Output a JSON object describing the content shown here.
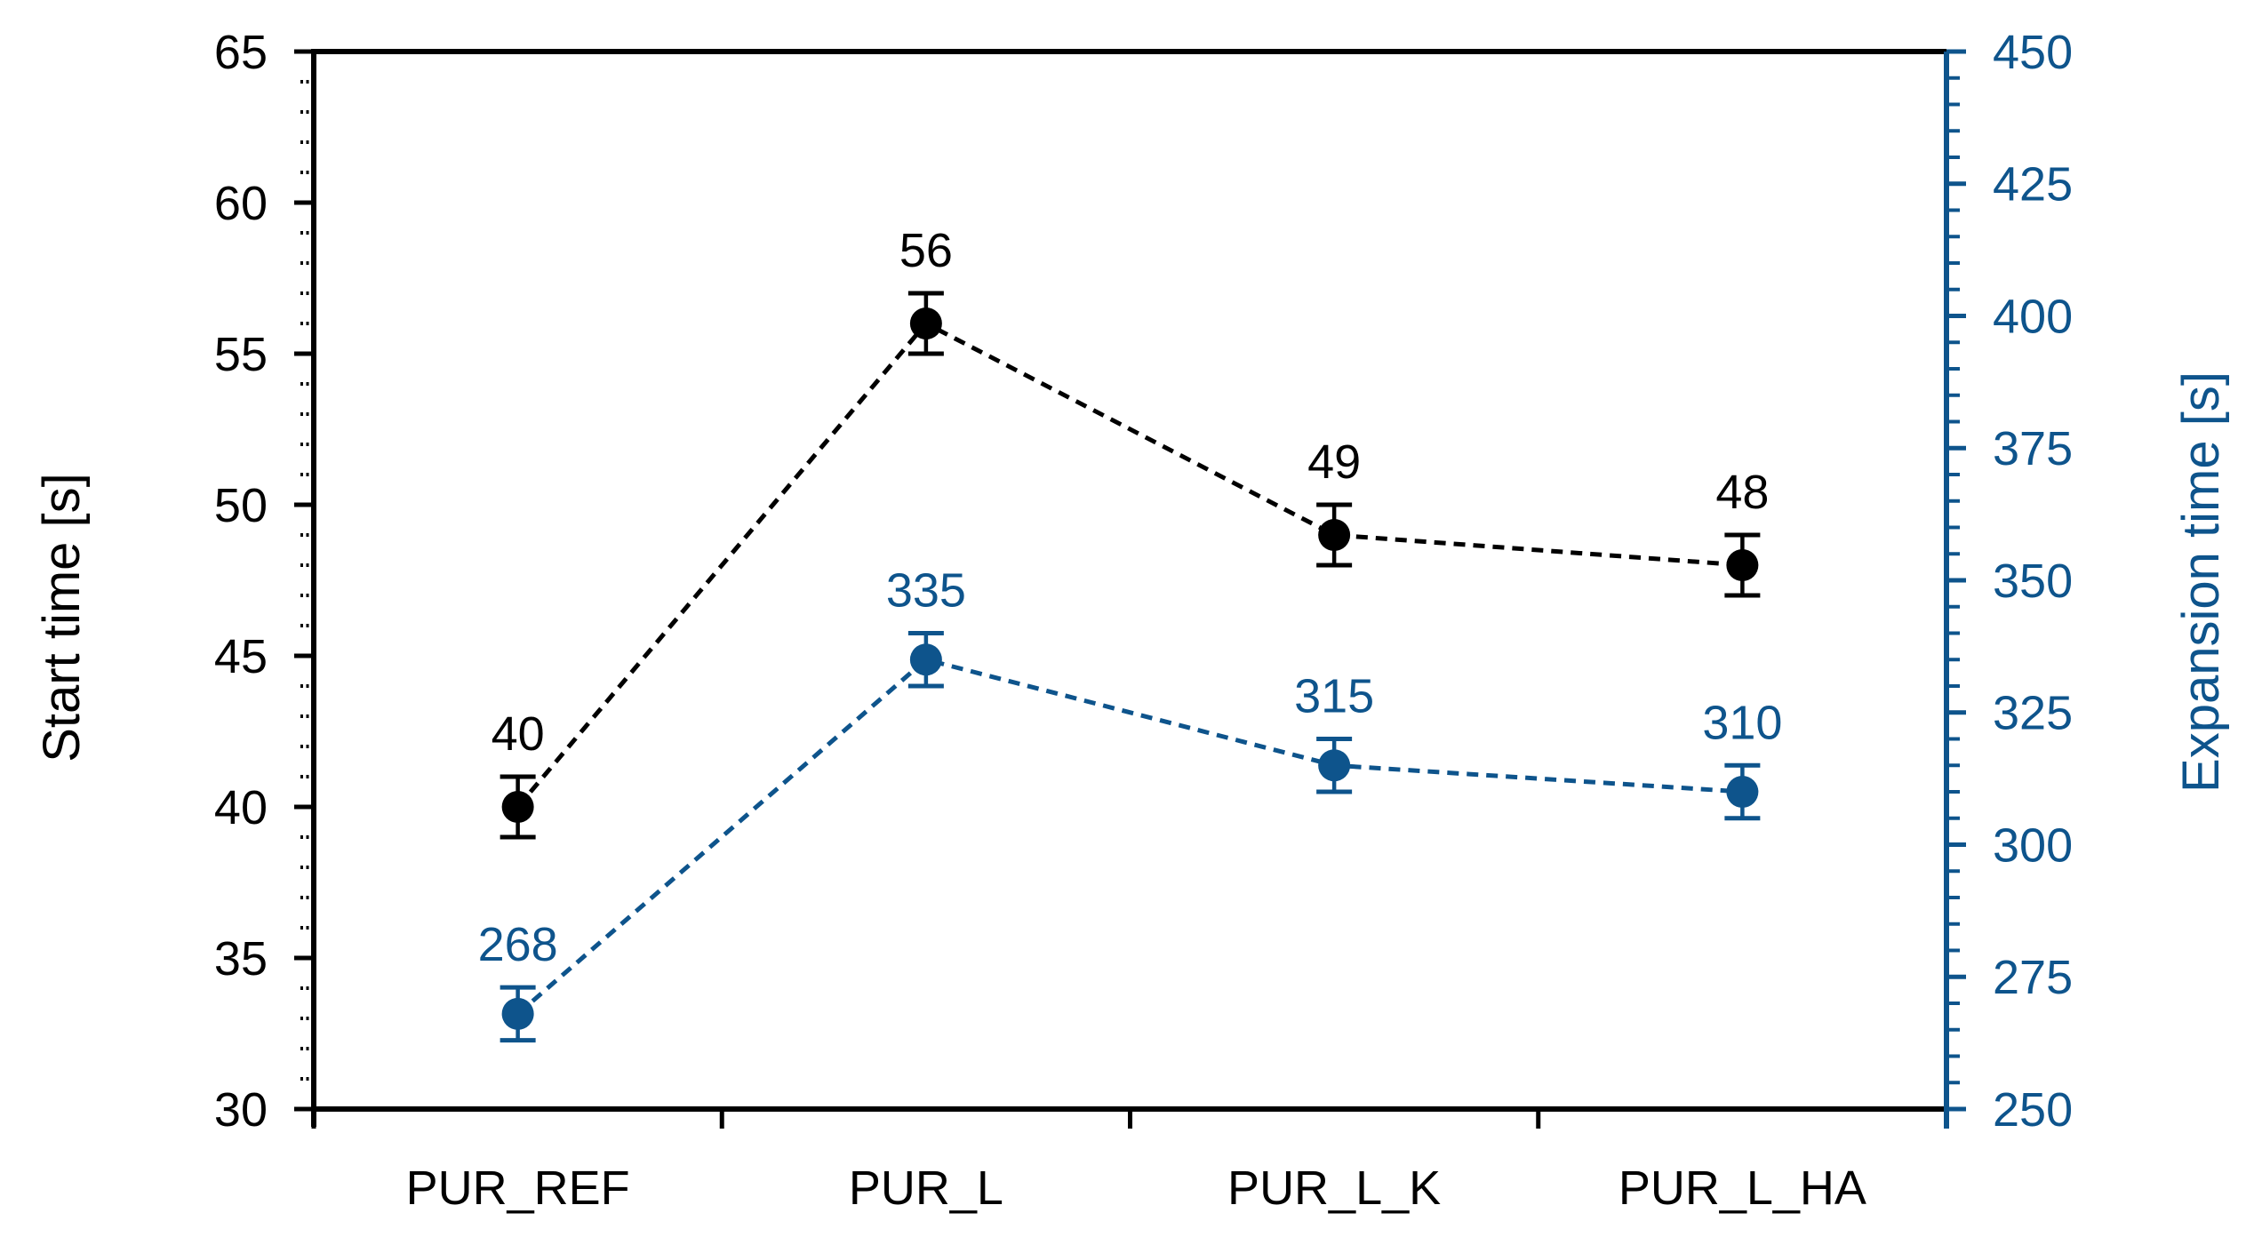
{
  "page": {
    "background": "#ffffff"
  },
  "chart_data": {
    "type": "line",
    "subtype": "dual-axis-scatter-with-error-bars",
    "title": "",
    "grid": false,
    "legend": "none",
    "line_style": "dashed",
    "marker": "circle",
    "categories": [
      "PUR_REF",
      "PUR_L",
      "PUR_L_K",
      "PUR_L_HA"
    ],
    "left_axis": {
      "title": "Start time [s]",
      "min": 30,
      "max": 65,
      "major_step": 5,
      "minor_step": 1,
      "tick_labels": [
        "30",
        "35",
        "40",
        "45",
        "50",
        "55",
        "60",
        "65"
      ],
      "color": "#000000"
    },
    "right_axis": {
      "title": "Expansion time [s]",
      "min": 250,
      "max": 450,
      "major_step": 25,
      "minor_step": 5,
      "tick_labels": [
        "250",
        "275",
        "300",
        "325",
        "350",
        "375",
        "400",
        "425",
        "450"
      ],
      "color": "#0E548C"
    },
    "series": [
      {
        "name": "Start time",
        "axis": "left",
        "color": "#000000",
        "values": [
          40,
          56,
          49,
          48
        ],
        "labels": [
          "40",
          "56",
          "49",
          "48"
        ],
        "error_bar": 1
      },
      {
        "name": "Expansion time",
        "axis": "right",
        "color": "#0E548C",
        "values": [
          268,
          335,
          315,
          310
        ],
        "labels": [
          "268",
          "335",
          "315",
          "310"
        ],
        "error_bar": 5
      }
    ]
  }
}
